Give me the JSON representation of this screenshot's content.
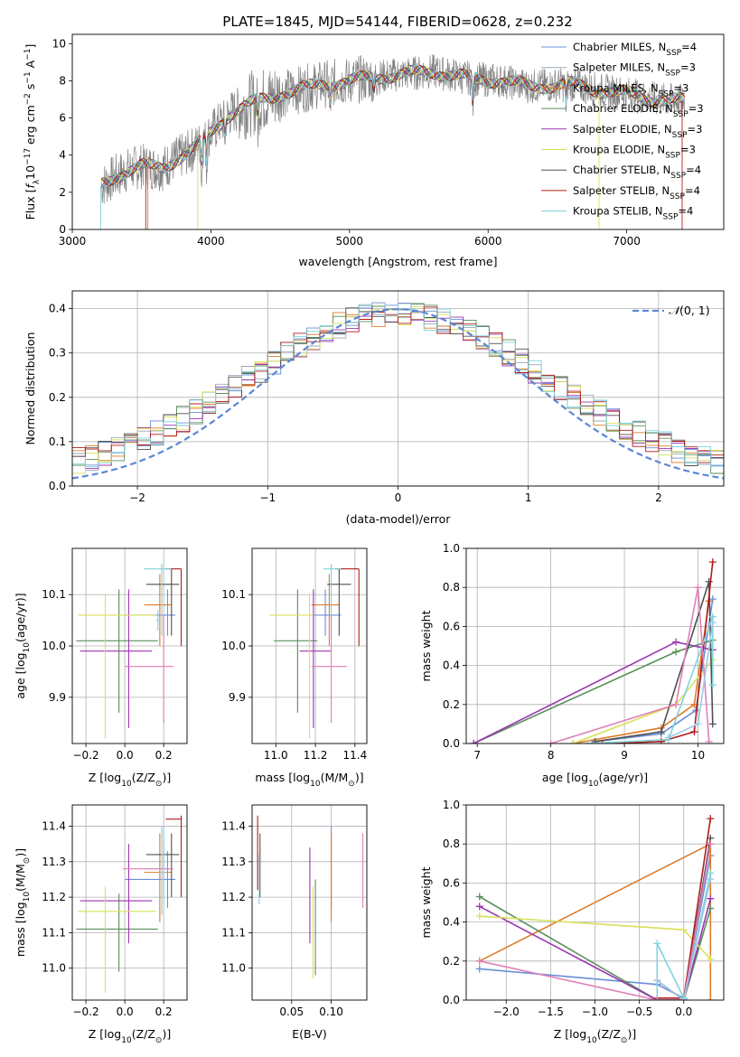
{
  "title": "PLATE=1845, MJD=54144, FIBERID=0628, z=0.232",
  "colors": {
    "Chabrier MILES": "#6a8fd8",
    "Salpeter MILES": "#9aa9b7",
    "Kroupa MILES": "#e07b28",
    "Chabrier ELODIE": "#5a8f5a",
    "Salpeter ELODIE": "#9c35b0",
    "Kroupa ELODIE": "#d9e05a",
    "Chabrier STELIB": "#505050",
    "Salpeter STELIB": "#b01c1c",
    "Kroupa STELIB": "#7fd3dc",
    "pinkish": "#e07fb8",
    "lightblue": "#9ecae1",
    "data": "#808080",
    "normal": "#5b87d6"
  },
  "chart_data": [
    {
      "type": "line",
      "name": "spectrum",
      "xlabel": "wavelength [Angstrom, rest frame]",
      "ylabel": "Flux [f_λ 10^-17 erg cm^-2 s^-1 A^-1]",
      "ylabel_parts": {
        "a": "Flux [",
        "f": "f",
        "lam": "λ",
        "ten": "10",
        "e17": "−17",
        "erg": " erg cm",
        "e2": "−2",
        "s": " s",
        "e1a": "−1",
        "A": " A",
        "e1b": "−1",
        "end": "]"
      },
      "xlim": [
        3000,
        7700
      ],
      "ylim": [
        0,
        10.5
      ],
      "xticks": [
        "3000",
        "4000",
        "5000",
        "6000",
        "7000"
      ],
      "yticks": [
        "0",
        "2",
        "4",
        "6",
        "8",
        "10"
      ],
      "grid": false,
      "legend_position": "top-right",
      "legend": [
        {
          "base": "Chabrier MILES, N",
          "sub": "SSP",
          "tail": "=4"
        },
        {
          "base": "Salpeter MILES, N",
          "sub": "SSP",
          "tail": "=3"
        },
        {
          "base": "Kroupa MILES, N",
          "sub": "SSP",
          "tail": "=3"
        },
        {
          "base": "Chabrier ELODIE, N",
          "sub": "SSP",
          "tail": "=3"
        },
        {
          "base": "Salpeter ELODIE, N",
          "sub": "SSP",
          "tail": "=3"
        },
        {
          "base": "Kroupa ELODIE, N",
          "sub": "SSP",
          "tail": "=3"
        },
        {
          "base": "Chabrier STELIB, N",
          "sub": "SSP",
          "tail": "=4"
        },
        {
          "base": "Salpeter STELIB, N",
          "sub": "SSP",
          "tail": "=4"
        },
        {
          "base": "Kroupa STELIB, N",
          "sub": "SSP",
          "tail": "=4"
        }
      ],
      "continuum": [
        [
          3200,
          2.3
        ],
        [
          3300,
          2.8
        ],
        [
          3400,
          3.2
        ],
        [
          3500,
          3.4
        ],
        [
          3650,
          3.3
        ],
        [
          3750,
          3.8
        ],
        [
          3850,
          4.2
        ],
        [
          3950,
          4.8
        ],
        [
          4050,
          5.6
        ],
        [
          4150,
          6.3
        ],
        [
          4300,
          6.8
        ],
        [
          4500,
          7.3
        ],
        [
          4800,
          7.8
        ],
        [
          5000,
          8.0
        ],
        [
          5300,
          8.3
        ],
        [
          5600,
          8.5
        ],
        [
          5900,
          8.1
        ],
        [
          6100,
          8.0
        ],
        [
          6300,
          7.7
        ],
        [
          6600,
          7.8
        ],
        [
          6800,
          7.5
        ],
        [
          7000,
          7.3
        ],
        [
          7200,
          7.0
        ],
        [
          7400,
          6.9
        ]
      ]
    },
    {
      "type": "bar",
      "name": "residual histogram",
      "xlabel": "(data-model)/error",
      "ylabel": "Normed distribution",
      "xlim": [
        -2.5,
        2.5
      ],
      "ylim": [
        0,
        0.44
      ],
      "xticks": [
        "−2",
        "−1",
        "0",
        "1",
        "2"
      ],
      "yticks": [
        "0.0",
        "0.1",
        "0.2",
        "0.3",
        "0.4"
      ],
      "grid": true,
      "legend": {
        "script": "𝒩",
        "rest": "(0, 1)"
      }
    },
    {
      "type": "scatter",
      "name": "age vs Z",
      "xlabel": {
        "a": "Z [log",
        "sub": "10",
        "b": "(Z/Z",
        "sun": "⊙",
        "c": ")]"
      },
      "ylabel": {
        "a": "age  [log",
        "sub": "10",
        "b": "(age/yr)]"
      },
      "xlim": [
        -0.27,
        0.32
      ],
      "ylim": [
        9.81,
        10.19
      ],
      "xticks": [
        "−0.2",
        "0.0",
        "0.2"
      ],
      "yticks": [
        "9.9",
        "10.0",
        "10.1"
      ],
      "points": [
        {
          "c": "Chabrier MILES",
          "x": 0.22,
          "xl": 0.0,
          "xh": 0.26,
          "y": 10.06,
          "yl": 10.02,
          "yh": 10.11
        },
        {
          "c": "Kroupa MILES",
          "x": 0.18,
          "xl": 0.1,
          "xh": 0.24,
          "y": 10.08,
          "yl": 10.0,
          "yh": 10.14
        },
        {
          "c": "Chabrier ELODIE",
          "x": -0.03,
          "xl": -0.25,
          "xh": 0.17,
          "y": 10.01,
          "yl": 9.87,
          "yh": 10.11
        },
        {
          "c": "Salpeter ELODIE",
          "x": 0.02,
          "xl": -0.23,
          "xh": 0.14,
          "y": 9.99,
          "yl": 9.84,
          "yh": 10.11
        },
        {
          "c": "Kroupa ELODIE",
          "x": -0.1,
          "xl": -0.24,
          "xh": 0.16,
          "y": 10.06,
          "yl": 9.82,
          "yh": 10.1
        },
        {
          "c": "Chabrier STELIB",
          "x": 0.24,
          "xl": 0.11,
          "xh": 0.28,
          "y": 10.12,
          "yl": 10.02,
          "yh": 10.15
        },
        {
          "c": "Salpeter STELIB",
          "x": 0.29,
          "xl": 0.21,
          "xh": 0.29,
          "y": 10.15,
          "yl": 10.0,
          "yh": 10.15
        },
        {
          "c": "Kroupa STELIB",
          "x": 0.19,
          "xl": 0.1,
          "xh": 0.24,
          "y": 10.15,
          "yl": 10.02,
          "yh": 10.16
        },
        {
          "c": "pinkish",
          "x": 0.2,
          "xl": 0.0,
          "xh": 0.25,
          "y": 9.96,
          "yl": 9.85,
          "yh": 10.06
        },
        {
          "c": "lightblue",
          "x": 0.17,
          "xl": 0.16,
          "xh": 0.18,
          "y": 10.05,
          "yl": 10.03,
          "yh": 10.07
        }
      ]
    },
    {
      "type": "scatter",
      "name": "age vs mass",
      "xlabel": {
        "a": "mass [log",
        "sub": "10",
        "b": "(M/M",
        "sun": "⊙",
        "c": ")]"
      },
      "ylabel": {
        "a": "",
        "sub": "",
        "b": ""
      },
      "xlim": [
        10.88,
        11.46
      ],
      "ylim": [
        9.81,
        10.19
      ],
      "xticks": [
        "11.0",
        "11.2",
        "11.4"
      ],
      "yticks": [
        "9.9",
        "10.0",
        "10.1"
      ],
      "points": [
        {
          "c": "Chabrier MILES",
          "x": 11.25,
          "xl": 11.17,
          "xh": 11.33,
          "y": 10.06,
          "yl": 10.02,
          "yh": 10.11
        },
        {
          "c": "Kroupa MILES",
          "x": 11.27,
          "xl": 11.18,
          "xh": 11.32,
          "y": 10.08,
          "yl": 10.0,
          "yh": 10.14
        },
        {
          "c": "Chabrier ELODIE",
          "x": 11.11,
          "xl": 10.99,
          "xh": 11.21,
          "y": 10.01,
          "yl": 9.87,
          "yh": 10.11
        },
        {
          "c": "Salpeter ELODIE",
          "x": 11.19,
          "xl": 11.12,
          "xh": 11.28,
          "y": 9.99,
          "yl": 9.84,
          "yh": 10.11
        },
        {
          "c": "Kroupa ELODIE",
          "x": 11.17,
          "xl": 10.97,
          "xh": 11.19,
          "y": 10.06,
          "yl": 9.82,
          "yh": 10.1
        },
        {
          "c": "Chabrier STELIB",
          "x": 11.32,
          "xl": 11.26,
          "xh": 11.38,
          "y": 10.12,
          "yl": 10.02,
          "yh": 10.15
        },
        {
          "c": "Salpeter STELIB",
          "x": 11.42,
          "xl": 11.3,
          "xh": 11.42,
          "y": 10.15,
          "yl": 10.0,
          "yh": 10.15
        },
        {
          "c": "Kroupa STELIB",
          "x": 11.28,
          "xl": 11.24,
          "xh": 11.33,
          "y": 10.15,
          "yl": 10.02,
          "yh": 10.16
        },
        {
          "c": "pinkish",
          "x": 11.28,
          "xl": 11.18,
          "xh": 11.36,
          "y": 9.96,
          "yl": 9.85,
          "yh": 10.06
        }
      ]
    },
    {
      "type": "line",
      "name": "mass weight vs age",
      "xlabel": {
        "a": "age  [log",
        "sub": "10",
        "b": "(age/yr)]"
      },
      "ylabel": "mass weight",
      "xlim": [
        6.85,
        10.35
      ],
      "ylim": [
        0,
        1
      ],
      "xticks": [
        "7",
        "8",
        "9",
        "10"
      ],
      "yticks": [
        "0.0",
        "0.2",
        "0.4",
        "0.6",
        "0.8",
        "1.0"
      ],
      "grid": true,
      "series": [
        {
          "c": "Chabrier MILES",
          "x": [
            8.6,
            9.5,
            9.97,
            10.2
          ],
          "y": [
            0.01,
            0.05,
            0.17,
            0.74
          ]
        },
        {
          "c": "Kroupa MILES",
          "x": [
            8.3,
            9.5,
            9.95,
            10.15
          ],
          "y": [
            0.0,
            0.08,
            0.2,
            0.73
          ]
        },
        {
          "c": "Chabrier ELODIE",
          "x": [
            6.95,
            9.7,
            10.2
          ],
          "y": [
            0.0,
            0.47,
            0.53
          ]
        },
        {
          "c": "Salpeter ELODIE",
          "x": [
            6.95,
            9.7,
            10.2
          ],
          "y": [
            0.0,
            0.52,
            0.48
          ]
        },
        {
          "c": "Kroupa ELODIE",
          "x": [
            8.3,
            9.7,
            10.2
          ],
          "y": [
            0.0,
            0.2,
            0.43
          ]
        },
        {
          "c": "Chabrier STELIB",
          "x": [
            8.6,
            9.5,
            10.15,
            10.2
          ],
          "y": [
            0.01,
            0.06,
            0.83,
            0.1
          ]
        },
        {
          "c": "Salpeter STELIB",
          "x": [
            8.7,
            9.5,
            9.95,
            10.2
          ],
          "y": [
            0.0,
            0.01,
            0.06,
            0.93
          ]
        },
        {
          "c": "Kroupa STELIB",
          "x": [
            8.5,
            9.6,
            10.2,
            10.2
          ],
          "y": [
            0.0,
            0.02,
            0.65,
            0.3
          ]
        },
        {
          "c": "pinkish",
          "x": [
            8.0,
            9.7,
            10.0,
            10.15
          ],
          "y": [
            0.0,
            0.2,
            0.8,
            0.01
          ]
        },
        {
          "c": "lightblue",
          "x": [
            9.6,
            10.0,
            10.2
          ],
          "y": [
            0.03,
            0.1,
            0.62
          ]
        }
      ]
    },
    {
      "type": "scatter",
      "name": "mass vs Z",
      "xlabel": {
        "a": "Z [log",
        "sub": "10",
        "b": "(Z/Z",
        "sun": "⊙",
        "c": ")]"
      },
      "ylabel": {
        "a": "mass [log",
        "sub": "10",
        "b": "(M/M",
        "sun": "⊙",
        "c": ")]"
      },
      "xlim": [
        -0.27,
        0.32
      ],
      "ylim": [
        10.91,
        11.46
      ],
      "xticks": [
        "−0.2",
        "0.0",
        "0.2"
      ],
      "yticks": [
        "11.0",
        "11.1",
        "11.2",
        "11.3",
        "11.4"
      ],
      "points": [
        {
          "c": "Chabrier MILES",
          "x": 0.22,
          "xl": 0.0,
          "xh": 0.26,
          "y": 11.25,
          "yl": 11.17,
          "yh": 11.33
        },
        {
          "c": "Kroupa MILES",
          "x": 0.18,
          "xl": 0.1,
          "xh": 0.24,
          "y": 11.27,
          "yl": 11.13,
          "yh": 11.38
        },
        {
          "c": "Chabrier ELODIE",
          "x": -0.03,
          "xl": -0.25,
          "xh": 0.17,
          "y": 11.11,
          "yl": 10.99,
          "yh": 11.21
        },
        {
          "c": "Salpeter ELODIE",
          "x": 0.02,
          "xl": -0.23,
          "xh": 0.14,
          "y": 11.19,
          "yl": 11.07,
          "yh": 11.35
        },
        {
          "c": "Kroupa ELODIE",
          "x": -0.1,
          "xl": -0.24,
          "xh": 0.16,
          "y": 11.16,
          "yl": 10.93,
          "yh": 11.23
        },
        {
          "c": "Chabrier STELIB",
          "x": 0.24,
          "xl": 0.11,
          "xh": 0.28,
          "y": 11.32,
          "yl": 11.2,
          "yh": 11.38
        },
        {
          "c": "Salpeter STELIB",
          "x": 0.29,
          "xl": 0.21,
          "xh": 0.29,
          "y": 11.42,
          "yl": 11.2,
          "yh": 11.43
        },
        {
          "c": "Kroupa STELIB",
          "x": 0.19,
          "xl": 0.1,
          "xh": 0.24,
          "y": 11.28,
          "yl": 11.15,
          "yh": 11.4
        },
        {
          "c": "pinkish",
          "x": 0.2,
          "xl": -0.01,
          "xh": 0.25,
          "y": 11.28,
          "yl": 11.2,
          "yh": 11.36
        },
        {
          "c": "lightblue",
          "x": 0.2,
          "xl": 0.18,
          "xh": 0.21,
          "y": 11.27,
          "yl": 11.18,
          "yh": 11.4
        }
      ]
    },
    {
      "type": "scatter",
      "name": "mass vs E(B-V)",
      "xlabel": "E(B-V)",
      "xlim": [
        0.0,
        0.145
      ],
      "ylim": [
        10.91,
        11.46
      ],
      "xticks": [
        "0.05",
        "0.10"
      ],
      "yticks": [
        "11.0",
        "11.1",
        "11.2",
        "11.3",
        "11.4"
      ],
      "points": [
        {
          "c": "Chabrier MILES",
          "x": 0.1,
          "y": 11.3,
          "yl": 11.17,
          "yh": 11.4
        },
        {
          "c": "Kroupa MILES",
          "x": 0.1,
          "y": 11.27,
          "yl": 11.13,
          "yh": 11.38
        },
        {
          "c": "Chabrier ELODIE",
          "x": 0.08,
          "y": 11.11,
          "yl": 10.98,
          "yh": 11.25
        },
        {
          "c": "Salpeter ELODIE",
          "x": 0.073,
          "y": 11.19,
          "yl": 11.07,
          "yh": 11.34
        },
        {
          "c": "Kroupa ELODIE",
          "x": 0.077,
          "y": 11.16,
          "yl": 10.97,
          "yh": 11.23
        },
        {
          "c": "Chabrier STELIB",
          "x": 0.01,
          "y": 11.32,
          "yl": 11.2,
          "yh": 11.38
        },
        {
          "c": "Salpeter STELIB",
          "x": 0.007,
          "y": 11.3,
          "yl": 11.22,
          "yh": 11.43
        },
        {
          "c": "Kroupa STELIB",
          "x": 0.009,
          "y": 11.25,
          "yl": 11.18,
          "yh": 11.32
        },
        {
          "c": "pinkish",
          "x": 0.14,
          "y": 11.28,
          "yl": 11.17,
          "yh": 11.38
        }
      ]
    },
    {
      "type": "line",
      "name": "mass weight vs Z",
      "xlabel": {
        "a": "Z [log",
        "sub": "10",
        "b": "(Z/Z",
        "sun": "⊙",
        "c": ")]"
      },
      "ylabel": "mass weight",
      "xlim": [
        -2.45,
        0.45
      ],
      "ylim": [
        0,
        1
      ],
      "xticks": [
        "−2.0",
        "−1.5",
        "−1.0",
        "−0.5",
        "0.0"
      ],
      "yticks": [
        "0.0",
        "0.2",
        "0.4",
        "0.6",
        "0.8",
        "1.0"
      ],
      "grid": true,
      "series": [
        {
          "c": "Chabrier MILES",
          "x": [
            -2.3,
            -0.3,
            0.0,
            0.3
          ],
          "y": [
            0.16,
            0.08,
            0.01,
            0.74
          ]
        },
        {
          "c": "Kroupa MILES",
          "x": [
            -2.3,
            0.3,
            0.3
          ],
          "y": [
            0.2,
            0.8,
            0.0
          ]
        },
        {
          "c": "Chabrier ELODIE",
          "x": [
            -2.3,
            -0.3,
            0.0,
            0.3
          ],
          "y": [
            0.53,
            0.0,
            0.0,
            0.47
          ]
        },
        {
          "c": "Salpeter ELODIE",
          "x": [
            -2.3,
            -0.3,
            0.0,
            0.3
          ],
          "y": [
            0.48,
            0.0,
            0.0,
            0.52
          ]
        },
        {
          "c": "Kroupa ELODIE",
          "x": [
            -2.3,
            0.0,
            0.3
          ],
          "y": [
            0.43,
            0.36,
            0.21
          ]
        },
        {
          "c": "Chabrier STELIB",
          "x": [
            -0.3,
            0.0,
            0.3
          ],
          "y": [
            0.1,
            0.0,
            0.83
          ]
        },
        {
          "c": "Salpeter STELIB",
          "x": [
            -0.3,
            0.0,
            0.3
          ],
          "y": [
            0.01,
            0.01,
            0.93
          ]
        },
        {
          "c": "Kroupa STELIB",
          "x": [
            -0.3,
            -0.3,
            0.0,
            0.3
          ],
          "y": [
            0.0,
            0.29,
            0.01,
            0.65
          ]
        },
        {
          "c": "pinkish",
          "x": [
            -2.3,
            -0.3,
            0.0,
            0.3
          ],
          "y": [
            0.2,
            0.0,
            0.0,
            0.8
          ]
        },
        {
          "c": "lightblue",
          "x": [
            -0.3,
            0.0,
            0.3
          ],
          "y": [
            0.1,
            0.0,
            0.62
          ]
        }
      ]
    }
  ]
}
